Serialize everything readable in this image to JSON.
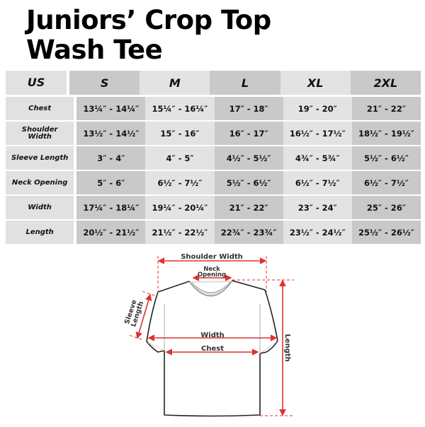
{
  "title": {
    "line1": "Juniors’ Crop Top",
    "line2": "Wash Tee"
  },
  "table": {
    "header": [
      "US",
      "S",
      "M",
      "L",
      "XL",
      "2XL"
    ],
    "rows": [
      {
        "label": "Chest",
        "values": [
          "13¼″ - 14¼″",
          "15¼″ - 16¼″",
          "17″ - 18″",
          "19″ - 20″",
          "21″ - 22″"
        ]
      },
      {
        "label": "Shoulder Width",
        "values": [
          "13½″ - 14½″",
          "15″ - 16″",
          "16″ - 17″",
          "16½″ - 17½″",
          "18½″ - 19½″"
        ]
      },
      {
        "label": "Sleeve Length",
        "values": [
          "3″ - 4″",
          "4″ - 5″",
          "4½″ - 5½″",
          "4¾″ - 5¾″",
          "5½″ - 6½″"
        ]
      },
      {
        "label": "Neck Opening",
        "values": [
          "5″ - 6″",
          "6½″ - 7½″",
          "5½″ - 6½″",
          "6½″ - 7½″",
          "6½″ - 7½″"
        ]
      },
      {
        "label": "Width",
        "values": [
          "17¼″ - 18¼″",
          "19¼″ - 20¼″",
          "21″ - 22″",
          "23″ - 24″",
          "25″ - 26″"
        ]
      },
      {
        "label": "Length",
        "values": [
          "20½″ - 21½″",
          "21½″ - 22½″",
          "22¾″ - 23¾″",
          "23½″ - 24½″",
          "25½″ - 26½″"
        ]
      }
    ]
  },
  "diagram": {
    "shoulder_width": "Shoulder Width",
    "neck_line1": "Neck",
    "neck_line2": "Opening",
    "sleeve_line1": "Sleeve",
    "sleeve_line2": "Length",
    "width": "Width",
    "chest": "Chest",
    "length": "Length",
    "arrow_color": "#e03030"
  }
}
